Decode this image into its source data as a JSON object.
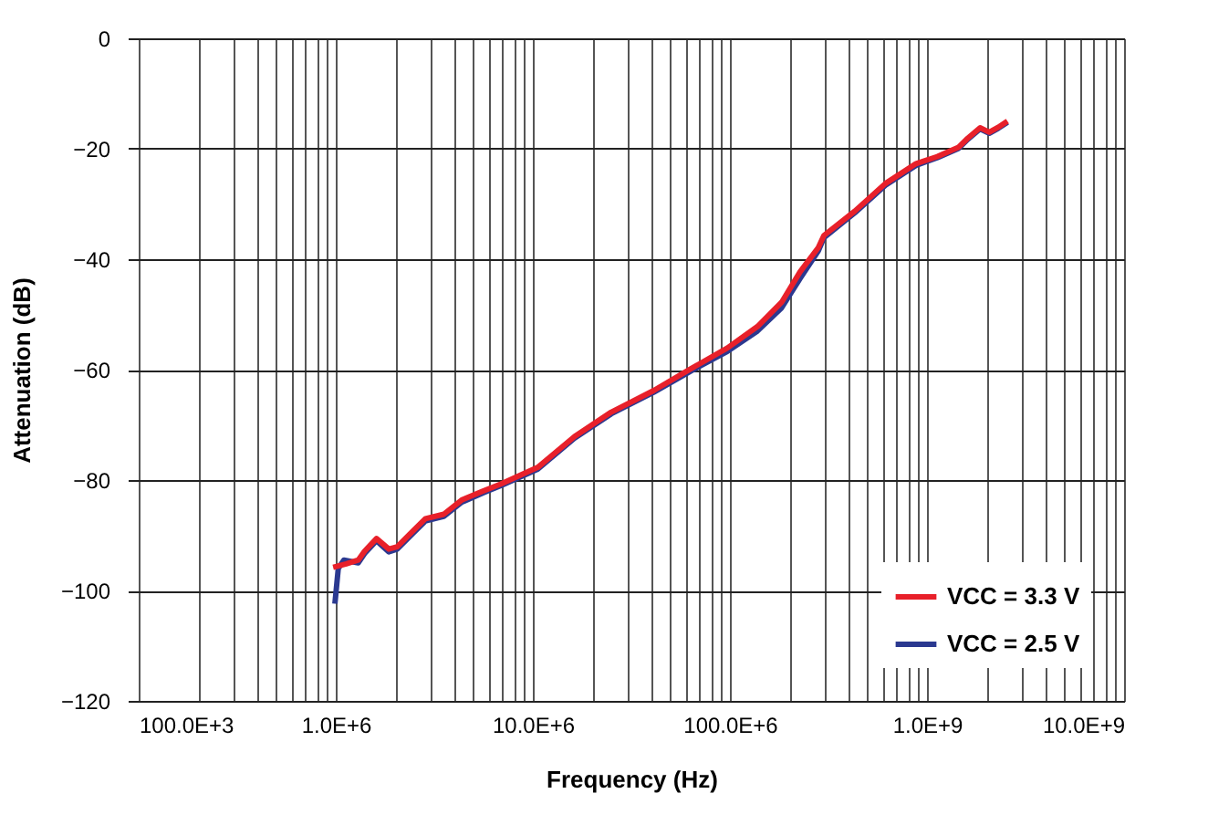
{
  "chart_data": {
    "type": "line",
    "xlabel": "Frequency (Hz)",
    "ylabel": "Attenuation (dB)",
    "log": "x",
    "xlim": [
      100000,
      10000000000
    ],
    "ylim": [
      -120,
      0
    ],
    "xticks": [
      {
        "value": 100000,
        "label": "100.0E+3"
      },
      {
        "value": 200000,
        "label": null
      },
      {
        "value": 300000,
        "label": null
      },
      {
        "value": 400000,
        "label": null
      },
      {
        "value": 500000,
        "label": null
      },
      {
        "value": 600000,
        "label": null
      },
      {
        "value": 700000,
        "label": null
      },
      {
        "value": 800000,
        "label": null
      },
      {
        "value": 900000,
        "label": null
      },
      {
        "value": 1000000,
        "label": "1.0E+6"
      },
      {
        "value": 2000000,
        "label": null
      },
      {
        "value": 3000000,
        "label": null
      },
      {
        "value": 4000000,
        "label": null
      },
      {
        "value": 5000000,
        "label": null
      },
      {
        "value": 6000000,
        "label": null
      },
      {
        "value": 7000000,
        "label": null
      },
      {
        "value": 8000000,
        "label": null
      },
      {
        "value": 9000000,
        "label": null
      },
      {
        "value": 10000000,
        "label": "10.0E+6"
      },
      {
        "value": 20000000,
        "label": null
      },
      {
        "value": 30000000,
        "label": null
      },
      {
        "value": 40000000,
        "label": null
      },
      {
        "value": 50000000,
        "label": null
      },
      {
        "value": 60000000,
        "label": null
      },
      {
        "value": 70000000,
        "label": null
      },
      {
        "value": 80000000,
        "label": null
      },
      {
        "value": 90000000,
        "label": null
      },
      {
        "value": 100000000,
        "label": "100.0E+6"
      },
      {
        "value": 200000000,
        "label": null
      },
      {
        "value": 300000000,
        "label": null
      },
      {
        "value": 400000000,
        "label": null
      },
      {
        "value": 500000000,
        "label": null
      },
      {
        "value": 600000000,
        "label": null
      },
      {
        "value": 700000000,
        "label": null
      },
      {
        "value": 800000000,
        "label": null
      },
      {
        "value": 900000000,
        "label": null
      },
      {
        "value": 1000000000,
        "label": "1.0E+9"
      },
      {
        "value": 2000000000,
        "label": null
      },
      {
        "value": 3000000000,
        "label": null
      },
      {
        "value": 4000000000,
        "label": null
      },
      {
        "value": 5000000000,
        "label": null
      },
      {
        "value": 6000000000,
        "label": null
      },
      {
        "value": 7000000000,
        "label": null
      },
      {
        "value": 8000000000,
        "label": null
      },
      {
        "value": 9000000000,
        "label": null
      },
      {
        "value": 10000000000,
        "label": "10.0E+9"
      }
    ],
    "yticks": [
      0,
      {
        "value": -20,
        "label": "−20"
      },
      {
        "value": -40,
        "label": "−40"
      },
      {
        "value": -60,
        "label": "−60"
      },
      {
        "value": -80,
        "label": "−80"
      },
      {
        "value": -100,
        "label": "−100"
      },
      {
        "value": -120,
        "label": "−120"
      }
    ],
    "grid": true,
    "legend": "bottom right",
    "line_style": "solid",
    "marker": "none",
    "series": [
      {
        "name": "VCC = 3.3 V",
        "color": "#e8202a",
        "x": [
          970000,
          1130000,
          1300000,
          1400000,
          1610000,
          1860000,
          2050000,
          2470000,
          2850000,
          3530000,
          4360000,
          5600000,
          6900000,
          10600000,
          16300000,
          25000000,
          41000000,
          63000000,
          97000000,
          138000000,
          183000000,
          227000000,
          281000000,
          300000000,
          430000000,
          615000000,
          880000000,
          1130000000,
          1450000000,
          1610000000,
          1860000000,
          2070000000,
          2300000000,
          2560000000
        ],
        "values": [
          -95.8,
          -95.2,
          -94.5,
          -92.9,
          -90.6,
          -92.5,
          -92.1,
          -89.2,
          -87,
          -86.2,
          -83.6,
          -82,
          -80.7,
          -77.7,
          -72.1,
          -67.7,
          -63.8,
          -59.9,
          -56.1,
          -52.2,
          -47.8,
          -42.3,
          -37.9,
          -35.7,
          -31.3,
          -26.3,
          -22.7,
          -21.4,
          -19.7,
          -18.1,
          -16.2,
          -17,
          -16.1,
          -15
        ]
      },
      {
        "name": "VCC = 2.5 V",
        "color": "#2b3990",
        "x": [
          990000,
          1030000,
          1100000,
          1300000,
          1400000,
          1610000,
          1860000,
          2050000,
          2470000,
          2850000,
          3530000,
          4360000,
          5600000,
          6900000,
          10600000,
          16300000,
          25000000,
          41000000,
          63000000,
          97000000,
          138000000,
          183000000,
          227000000,
          281000000,
          300000000,
          430000000,
          615000000,
          880000000,
          1130000000,
          1450000000,
          1610000000,
          1860000000,
          2070000000,
          2300000000,
          2560000000
        ],
        "values": [
          -102.4,
          -96,
          -94.5,
          -95,
          -93.3,
          -91,
          -93,
          -92.5,
          -89.6,
          -87.4,
          -86.6,
          -84,
          -82.3,
          -81,
          -78,
          -72.4,
          -68,
          -64.1,
          -60.3,
          -56.7,
          -53,
          -48.8,
          -43.5,
          -38.5,
          -36.1,
          -31.6,
          -26.6,
          -23,
          -21.6,
          -19.9,
          -18.3,
          -16.4,
          -17.2,
          -16.3,
          -15.2
        ]
      }
    ]
  }
}
